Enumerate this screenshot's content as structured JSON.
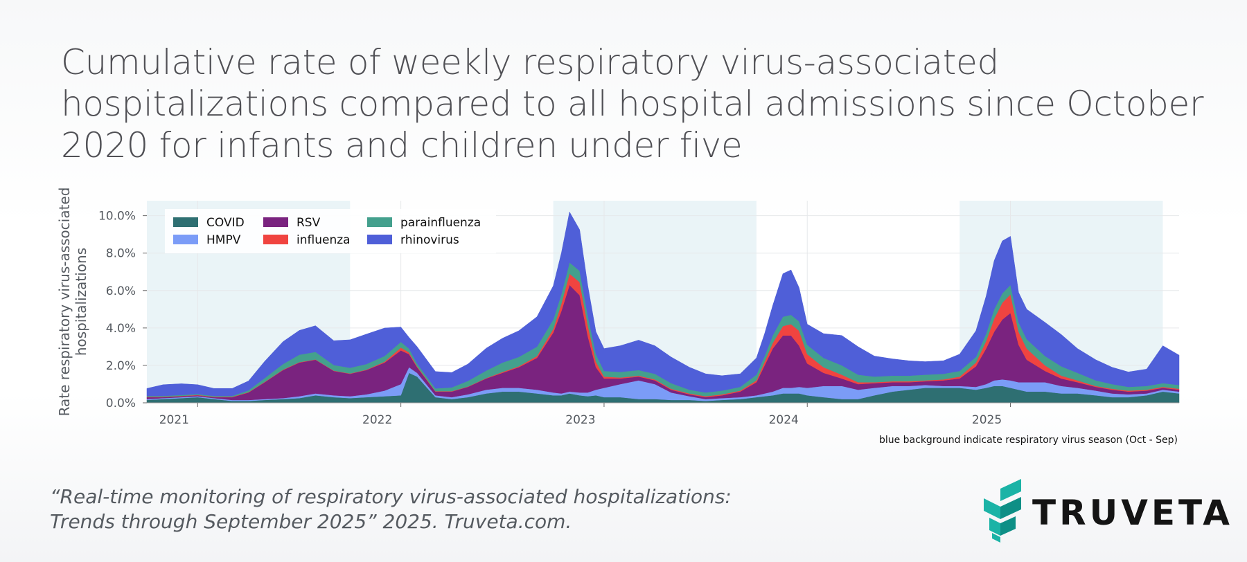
{
  "title": "Cumulative rate of weekly respiratory virus-associated hospitalizations compared to all hospital admissions since October 2020 for infants and children under five",
  "citation": {
    "line1": "“Real-time monitoring of respiratory virus-associated hospitalizations:",
    "line2": "Trends through September 2025” 2025. Truveta.com."
  },
  "logo": {
    "text": "TRUVETA",
    "colors": {
      "mark": "#1bb3a6",
      "mark_dark": "#0e8f86",
      "text": "#141414"
    }
  },
  "chart_data": {
    "type": "area",
    "stacked": true,
    "ylabel": "Rate respiratory virus-associated hospitalizations",
    "ylim": [
      0,
      10.8
    ],
    "yticks": [
      "0.0%",
      "2.0%",
      "4.0%",
      "6.0%",
      "8.0%",
      "10.0%"
    ],
    "xlim": [
      2020.75,
      2025.83
    ],
    "xticks": [
      "2021",
      "2022",
      "2023",
      "2024",
      "2025"
    ],
    "grid": true,
    "legend_position": "top-left",
    "note": "blue background indicate respiratory virus season (Oct - Sep)",
    "shaded_seasons": [
      [
        2020.75,
        2021.75
      ],
      [
        2022.75,
        2023.75
      ],
      [
        2024.75,
        2025.75
      ]
    ],
    "season_color": "#eaf4f7",
    "x": [
      2020.75,
      2020.83,
      2020.92,
      2021.0,
      2021.08,
      2021.17,
      2021.25,
      2021.33,
      2021.42,
      2021.5,
      2021.58,
      2021.67,
      2021.75,
      2021.83,
      2021.92,
      2022.0,
      2022.04,
      2022.08,
      2022.17,
      2022.25,
      2022.33,
      2022.42,
      2022.5,
      2022.58,
      2022.67,
      2022.75,
      2022.79,
      2022.83,
      2022.88,
      2022.92,
      2022.96,
      2023.0,
      2023.08,
      2023.17,
      2023.25,
      2023.33,
      2023.42,
      2023.5,
      2023.58,
      2023.67,
      2023.75,
      2023.79,
      2023.83,
      2023.88,
      2023.92,
      2023.96,
      2024.0,
      2024.08,
      2024.17,
      2024.25,
      2024.33,
      2024.42,
      2024.5,
      2024.58,
      2024.67,
      2024.75,
      2024.83,
      2024.88,
      2024.92,
      2024.96,
      2025.0,
      2025.04,
      2025.08,
      2025.17,
      2025.25,
      2025.33,
      2025.42,
      2025.5,
      2025.58,
      2025.67,
      2025.75,
      2025.83
    ],
    "series": [
      {
        "name": "COVID",
        "color": "#2e6f72",
        "values": [
          0.15,
          0.2,
          0.25,
          0.3,
          0.2,
          0.1,
          0.1,
          0.15,
          0.2,
          0.25,
          0.4,
          0.3,
          0.25,
          0.3,
          0.35,
          0.4,
          1.6,
          1.4,
          0.3,
          0.2,
          0.3,
          0.5,
          0.6,
          0.6,
          0.5,
          0.4,
          0.4,
          0.5,
          0.4,
          0.35,
          0.4,
          0.3,
          0.3,
          0.2,
          0.2,
          0.15,
          0.15,
          0.1,
          0.15,
          0.2,
          0.3,
          0.35,
          0.4,
          0.5,
          0.5,
          0.5,
          0.4,
          0.3,
          0.2,
          0.2,
          0.4,
          0.6,
          0.7,
          0.8,
          0.8,
          0.8,
          0.7,
          0.8,
          0.9,
          0.9,
          0.8,
          0.7,
          0.6,
          0.6,
          0.5,
          0.5,
          0.4,
          0.3,
          0.3,
          0.4,
          0.6,
          0.5
        ]
      },
      {
        "name": "HMPV",
        "color": "#7b9cf7",
        "values": [
          0.05,
          0.05,
          0.05,
          0.05,
          0.05,
          0.05,
          0.05,
          0.05,
          0.05,
          0.1,
          0.1,
          0.1,
          0.1,
          0.15,
          0.3,
          0.6,
          0.3,
          0.2,
          0.1,
          0.1,
          0.15,
          0.2,
          0.2,
          0.2,
          0.2,
          0.15,
          0.1,
          0.1,
          0.15,
          0.2,
          0.3,
          0.5,
          0.7,
          1.0,
          0.8,
          0.4,
          0.2,
          0.1,
          0.1,
          0.1,
          0.1,
          0.15,
          0.2,
          0.3,
          0.3,
          0.35,
          0.4,
          0.6,
          0.7,
          0.5,
          0.4,
          0.3,
          0.2,
          0.15,
          0.1,
          0.1,
          0.15,
          0.2,
          0.3,
          0.35,
          0.4,
          0.4,
          0.5,
          0.5,
          0.4,
          0.3,
          0.25,
          0.2,
          0.15,
          0.1,
          0.1,
          0.1
        ]
      },
      {
        "name": "RSV",
        "color": "#7a237f",
        "values": [
          0.1,
          0.05,
          0.05,
          0.05,
          0.05,
          0.15,
          0.4,
          0.9,
          1.5,
          1.8,
          1.8,
          1.3,
          1.2,
          1.3,
          1.5,
          1.8,
          0.7,
          0.3,
          0.2,
          0.3,
          0.4,
          0.6,
          0.8,
          1.1,
          1.7,
          3.2,
          4.4,
          5.7,
          5.2,
          3.0,
          1.2,
          0.5,
          0.3,
          0.2,
          0.2,
          0.15,
          0.1,
          0.1,
          0.15,
          0.3,
          0.7,
          1.5,
          2.3,
          2.8,
          2.8,
          2.2,
          1.3,
          0.7,
          0.4,
          0.3,
          0.25,
          0.2,
          0.2,
          0.2,
          0.3,
          0.4,
          1.1,
          1.9,
          2.6,
          3.2,
          3.6,
          2.0,
          1.2,
          0.6,
          0.4,
          0.3,
          0.2,
          0.2,
          0.15,
          0.15,
          0.1,
          0.1
        ]
      },
      {
        "name": "influenza",
        "color": "#f04440",
        "values": [
          0.02,
          0.02,
          0.02,
          0.02,
          0.02,
          0.02,
          0.02,
          0.02,
          0.02,
          0.02,
          0.02,
          0.02,
          0.02,
          0.02,
          0.05,
          0.15,
          0.1,
          0.05,
          0.02,
          0.02,
          0.02,
          0.02,
          0.05,
          0.05,
          0.1,
          0.2,
          0.4,
          0.6,
          0.7,
          0.6,
          0.3,
          0.1,
          0.05,
          0.05,
          0.05,
          0.05,
          0.05,
          0.05,
          0.05,
          0.05,
          0.1,
          0.2,
          0.3,
          0.5,
          0.6,
          0.8,
          0.5,
          0.3,
          0.2,
          0.1,
          0.05,
          0.05,
          0.05,
          0.05,
          0.05,
          0.1,
          0.2,
          0.4,
          0.7,
          0.9,
          1.0,
          0.7,
          0.6,
          0.3,
          0.15,
          0.1,
          0.05,
          0.05,
          0.05,
          0.05,
          0.05,
          0.05
        ]
      },
      {
        "name": "parainfluenza",
        "color": "#44a08d",
        "values": [
          0.05,
          0.05,
          0.05,
          0.05,
          0.05,
          0.05,
          0.1,
          0.2,
          0.3,
          0.4,
          0.4,
          0.3,
          0.3,
          0.3,
          0.3,
          0.3,
          0.2,
          0.15,
          0.15,
          0.2,
          0.3,
          0.4,
          0.5,
          0.5,
          0.5,
          0.5,
          0.5,
          0.6,
          0.6,
          0.5,
          0.4,
          0.3,
          0.3,
          0.3,
          0.3,
          0.3,
          0.2,
          0.2,
          0.2,
          0.2,
          0.3,
          0.3,
          0.4,
          0.5,
          0.5,
          0.5,
          0.5,
          0.5,
          0.5,
          0.4,
          0.3,
          0.3,
          0.3,
          0.3,
          0.3,
          0.3,
          0.3,
          0.4,
          0.5,
          0.5,
          0.5,
          0.5,
          0.5,
          0.5,
          0.5,
          0.4,
          0.3,
          0.25,
          0.2,
          0.2,
          0.2,
          0.2
        ]
      },
      {
        "name": "rhinovirus",
        "color": "#4f5fd8",
        "values": [
          0.4,
          0.6,
          0.6,
          0.5,
          0.4,
          0.4,
          0.5,
          0.9,
          1.2,
          1.3,
          1.4,
          1.3,
          1.5,
          1.6,
          1.5,
          0.8,
          0.6,
          0.9,
          0.9,
          0.8,
          0.9,
          1.2,
          1.3,
          1.4,
          1.6,
          1.8,
          2.2,
          2.7,
          2.2,
          1.6,
          1.2,
          1.2,
          1.4,
          1.6,
          1.5,
          1.4,
          1.2,
          1.0,
          0.8,
          0.7,
          0.9,
          1.2,
          1.6,
          2.3,
          2.4,
          1.8,
          1.1,
          1.3,
          1.6,
          1.5,
          1.1,
          0.9,
          0.8,
          0.7,
          0.7,
          0.9,
          1.4,
          2.0,
          2.6,
          2.8,
          2.6,
          1.6,
          1.6,
          1.8,
          1.7,
          1.3,
          1.1,
          0.9,
          0.8,
          0.9,
          2.0,
          1.6
        ]
      }
    ]
  }
}
